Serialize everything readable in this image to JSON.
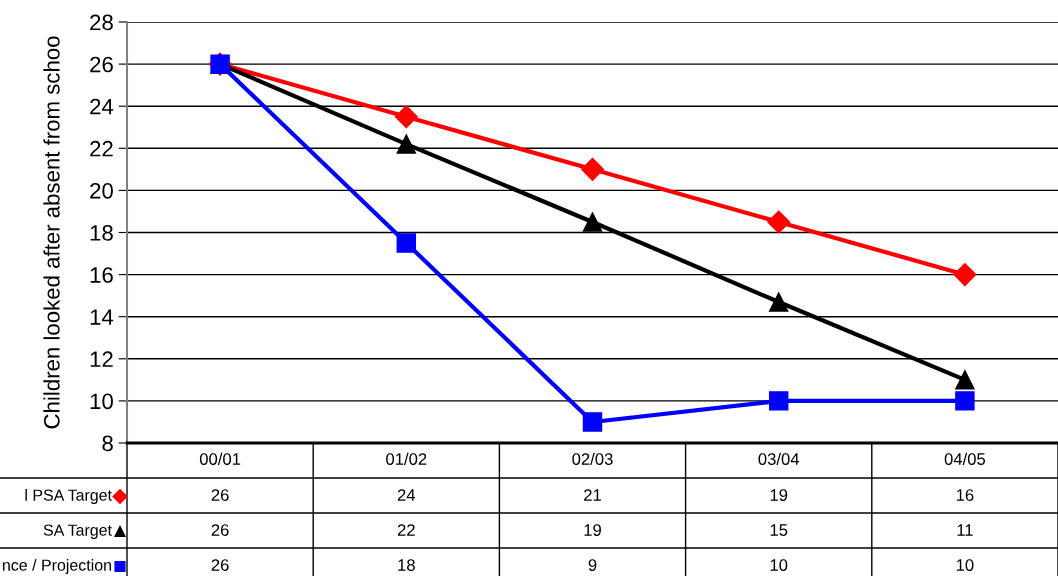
{
  "chart_data": {
    "type": "line",
    "ylabel": "Children looked after absent from schoo",
    "categories": [
      "00/01",
      "01/02",
      "02/03",
      "03/04",
      "04/05"
    ],
    "series": [
      {
        "name": "l PSA Target",
        "color": "#ff0000",
        "marker": "diamond",
        "values": [
          26,
          23.5,
          21,
          18.5,
          16
        ],
        "value_labels": [
          "26",
          "24",
          "21",
          "19",
          "16"
        ]
      },
      {
        "name": "SA Target",
        "color": "#000000",
        "marker": "triangle",
        "values": [
          26,
          22.2,
          18.5,
          14.7,
          11
        ],
        "value_labels": [
          "26",
          "22",
          "19",
          "15",
          "11"
        ]
      },
      {
        "name": "nce / Projection",
        "color": "#0000ff",
        "marker": "square",
        "values": [
          26,
          17.5,
          9,
          10,
          10
        ],
        "value_labels": [
          "26",
          "18",
          "9",
          "10",
          "10"
        ]
      }
    ],
    "ylim": [
      8,
      28
    ],
    "yticks": [
      8,
      10,
      12,
      14,
      16,
      18,
      20,
      22,
      24,
      26,
      28
    ],
    "grid": "y",
    "legend": "left",
    "line_style": "solid"
  }
}
